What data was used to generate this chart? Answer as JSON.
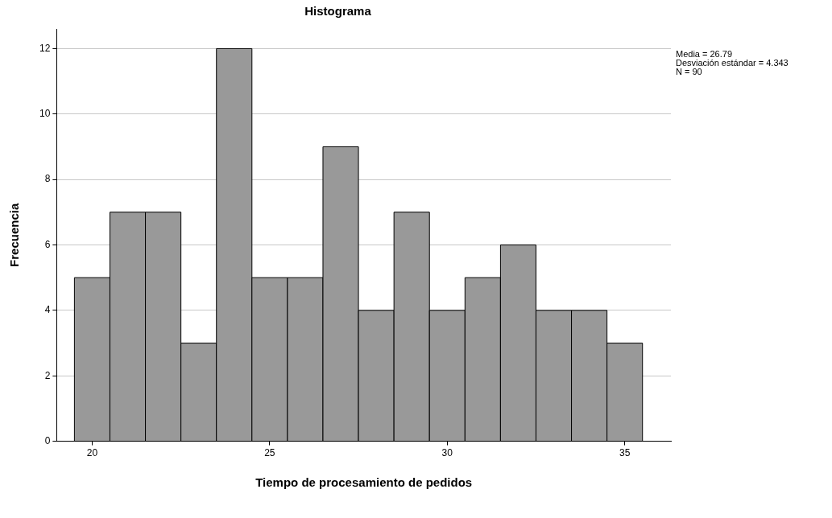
{
  "chart_data": {
    "type": "histogram",
    "title": "Histograma",
    "xlabel": "Tiempo de procesamiento de pedidos",
    "ylabel": "Frecuencia",
    "bins": [
      19.5,
      20.5,
      21.5,
      22.5,
      23.5,
      24.5,
      25.5,
      26.5,
      27.5,
      28.5,
      29.5,
      30.5,
      31.5,
      32.5,
      33.5,
      34.5,
      35.5
    ],
    "values": [
      5,
      7,
      7,
      3,
      12,
      5,
      5,
      9,
      4,
      7,
      4,
      5,
      6,
      4,
      4,
      3
    ],
    "color": "#999999",
    "xlim": [
      19,
      36.3
    ],
    "xticks": [
      20,
      25,
      30,
      35
    ],
    "ylim": [
      0,
      12.6
    ],
    "yticks": [
      0,
      2,
      4,
      6,
      8,
      10,
      12
    ],
    "grid": "y",
    "legend": false,
    "annotations": [
      "Media = 26.79",
      "Desviación estándar = 4.343",
      "N = 90"
    ]
  }
}
